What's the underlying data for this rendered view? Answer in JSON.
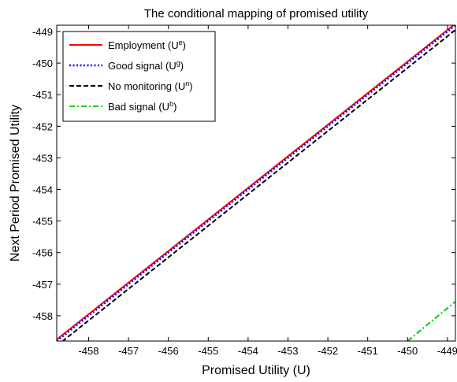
{
  "chart_data": {
    "type": "line",
    "title": "The conditional mapping of promised utility",
    "xlabel": "Promised Utility (U)",
    "ylabel": "Next Period Promised Utility",
    "xlim": [
      -458.8,
      -448.8
    ],
    "ylim": [
      -458.8,
      -448.8
    ],
    "xticks": [
      -458,
      -457,
      -456,
      -455,
      -454,
      -453,
      -452,
      -451,
      -450,
      -449
    ],
    "yticks": [
      -458,
      -457,
      -456,
      -455,
      -454,
      -453,
      -452,
      -451,
      -450,
      -449
    ],
    "grid": false,
    "legend_position": "top-left",
    "series": [
      {
        "name": "Employment (U",
        "name_sup": "e",
        "name_end": ")",
        "color": "#ff0000",
        "style": "solid",
        "x": [
          -458.8,
          -448.8
        ],
        "y": [
          -458.75,
          -448.75
        ]
      },
      {
        "name": "Good signal (U",
        "name_sup": "g",
        "name_end": ")",
        "color": "#0000ff",
        "style": "dotted",
        "x": [
          -458.8,
          -448.8
        ],
        "y": [
          -458.8,
          -448.8
        ]
      },
      {
        "name": "No monitoring (U",
        "name_sup": "n",
        "name_end": ")",
        "color": "#000000",
        "style": "dashed",
        "x": [
          -458.8,
          -448.8
        ],
        "y": [
          -458.95,
          -448.95
        ]
      },
      {
        "name": "Bad signal (U",
        "name_sup": "b",
        "name_end": ")",
        "color": "#00cc00",
        "style": "dashdot",
        "x": [
          -450.0,
          -448.8
        ],
        "y": [
          -458.8,
          -457.55
        ]
      }
    ]
  }
}
